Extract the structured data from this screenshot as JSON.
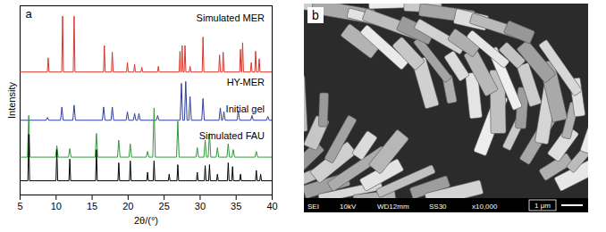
{
  "chart_data": {
    "type": "line",
    "panel_label": "a",
    "x_label": "2θ/(°)",
    "y_label": "Intensity",
    "xlim": [
      5,
      40
    ],
    "xticks": [
      5,
      10,
      15,
      20,
      25,
      30,
      35,
      40
    ],
    "ylim": [
      0,
      100
    ],
    "tick_labels": "x",
    "grid": false,
    "series": [
      {
        "name": "Simulated MER",
        "color": "#d9362b",
        "x": [
          5,
          8.78,
          8.9,
          9.02,
          10.78,
          10.9,
          11.02,
          12.38,
          12.5,
          12.62,
          16.58,
          16.7,
          16.82,
          17.68,
          17.8,
          17.92,
          19.78,
          19.9,
          20.02,
          20.78,
          20.9,
          21.02,
          21.78,
          21.9,
          22.02,
          24.08,
          24.2,
          24.32,
          27.08,
          27.2,
          27.32,
          27.38,
          27.5,
          27.62,
          27.78,
          27.9,
          28.02,
          28.48,
          28.6,
          28.72,
          30.28,
          30.4,
          30.52,
          32.58,
          32.7,
          32.82,
          33.08,
          33.2,
          33.32,
          35.48,
          35.6,
          35.72,
          35.78,
          35.9,
          36.02,
          36.98,
          37.1,
          37.22,
          37.58,
          37.7,
          37.82,
          38.08,
          38.2,
          38.32,
          40
        ],
        "values": [
          65,
          65,
          72.5,
          65,
          65,
          94.5,
          65,
          65,
          94.5,
          65,
          65,
          79,
          65,
          65,
          75.5,
          65,
          65,
          70,
          65,
          65,
          69,
          65,
          65,
          67.5,
          65,
          65,
          68,
          65,
          65,
          76,
          65,
          65,
          79,
          65,
          65,
          79,
          65,
          65,
          68,
          65,
          65,
          83.5,
          65,
          65,
          74,
          65,
          65,
          75.5,
          65,
          65,
          77,
          65,
          65,
          80.5,
          65,
          65,
          70,
          65,
          65,
          76,
          65,
          65,
          72,
          65,
          65
        ]
      },
      {
        "name": "HY-MER",
        "color": "#2f3f9e",
        "x": [
          5,
          8.62,
          8.8,
          8.98,
          10.62,
          10.8,
          10.98,
          12.32,
          12.5,
          12.68,
          16.42,
          16.6,
          16.78,
          17.62,
          17.8,
          17.98,
          19.72,
          19.9,
          20.08,
          20.72,
          20.9,
          21.08,
          21.32,
          21.5,
          21.68,
          23.92,
          24.1,
          24.28,
          27.22,
          27.4,
          27.58,
          27.82,
          28.0,
          28.18,
          28.42,
          28.6,
          28.78,
          30.22,
          30.4,
          30.58,
          32.62,
          32.8,
          32.98,
          33.12,
          33.3,
          33.48,
          35.12,
          35.3,
          35.48,
          37.02,
          37.2,
          37.38,
          39.22,
          39.4,
          39.58,
          40
        ],
        "values": [
          39.5,
          39.5,
          41,
          39.5,
          39.5,
          46.5,
          39.5,
          39.5,
          47.5,
          39.5,
          39.5,
          46.5,
          39.5,
          39.5,
          46.5,
          39.5,
          39.5,
          44,
          39.5,
          39.5,
          43,
          39.5,
          39.5,
          43,
          39.5,
          39.5,
          42,
          39.5,
          39.5,
          59,
          39.5,
          39.5,
          60,
          39.5,
          39.5,
          52,
          39.5,
          39.5,
          51,
          39.5,
          39.5,
          46,
          39.5,
          39.5,
          44,
          39.5,
          39.5,
          44.5,
          39.5,
          39.5,
          42,
          39.5,
          39.5,
          41.5,
          39.5,
          39.5
        ]
      },
      {
        "name": "Initial gel",
        "color": "#2f9a37",
        "x": [
          5,
          6.02,
          6.2,
          6.38,
          9.92,
          10.1,
          10.28,
          11.72,
          11.9,
          12.08,
          15.42,
          15.6,
          15.78,
          18.52,
          18.7,
          18.88,
          20.12,
          20.3,
          20.48,
          22.52,
          22.7,
          22.88,
          23.42,
          23.6,
          23.78,
          26.72,
          26.9,
          27.08,
          29.42,
          29.6,
          29.78,
          30.52,
          30.7,
          30.88,
          31.12,
          31.3,
          31.48,
          32.22,
          32.4,
          32.58,
          33.72,
          33.9,
          34.08,
          34.42,
          34.6,
          34.78,
          37.62,
          37.8,
          37.98,
          40
        ],
        "values": [
          20,
          20,
          42,
          20,
          20,
          26,
          20,
          20,
          24.5,
          20,
          20,
          32.5,
          20,
          20,
          29,
          20,
          20,
          27,
          20,
          20,
          23,
          20,
          20,
          46,
          20,
          20,
          39,
          20,
          20,
          25,
          20,
          20,
          29,
          20,
          20,
          32.5,
          20,
          20,
          25,
          20,
          20,
          27,
          20,
          20,
          24,
          20,
          20,
          23,
          20,
          20
        ]
      },
      {
        "name": "Simulated FAU",
        "color": "#000000",
        "x": [
          5,
          6.08,
          6.2,
          6.32,
          9.98,
          10.1,
          10.22,
          11.78,
          11.9,
          12.02,
          15.48,
          15.6,
          15.72,
          18.58,
          18.7,
          18.82,
          20.18,
          20.3,
          20.42,
          22.58,
          22.7,
          22.82,
          23.48,
          23.6,
          23.72,
          25.58,
          25.7,
          25.82,
          26.78,
          26.9,
          27.02,
          29.48,
          29.6,
          29.72,
          30.58,
          30.7,
          30.82,
          31.18,
          31.3,
          31.42,
          32.28,
          32.4,
          32.52,
          33.78,
          33.9,
          34.02,
          34.38,
          34.5,
          34.62,
          35.48,
          35.6,
          35.72,
          37.68,
          37.8,
          37.92,
          38.28,
          38.4,
          38.52,
          40
        ],
        "values": [
          7.5,
          7.5,
          32,
          7.5,
          7.5,
          24,
          7.5,
          7.5,
          19,
          7.5,
          7.5,
          24,
          7.5,
          7.5,
          17,
          7.5,
          7.5,
          18,
          7.5,
          7.5,
          12,
          7.5,
          7.5,
          18,
          7.5,
          7.5,
          11,
          7.5,
          7.5,
          16,
          7.5,
          7.5,
          12,
          7.5,
          7.5,
          15.5,
          7.5,
          7.5,
          16,
          7.5,
          7.5,
          11,
          7.5,
          7.5,
          17,
          7.5,
          7.5,
          15,
          7.5,
          7.5,
          11,
          7.5,
          7.5,
          13,
          7.5,
          7.5,
          11,
          7.5,
          7.5
        ]
      }
    ]
  },
  "image": {
    "panel_label": "b",
    "info": [
      "SEI",
      "10kV",
      "WD12mm",
      "SS30",
      "x10,000"
    ],
    "scale_bar": "1 μm"
  }
}
